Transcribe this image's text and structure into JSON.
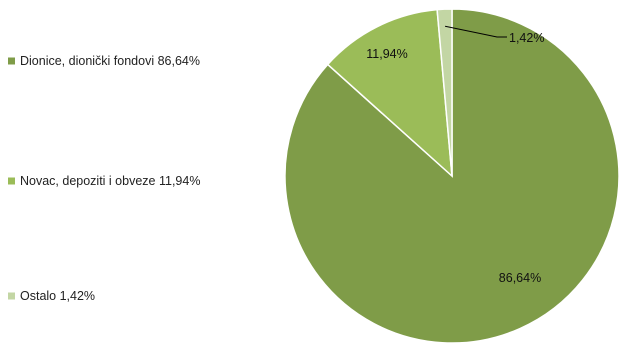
{
  "chart_data": {
    "type": "pie",
    "title": "",
    "categories": [
      "Dionice, dionički fondovi",
      "Novac, depoziti i obveze",
      "Ostalo"
    ],
    "values": [
      86.64,
      11.94,
      1.42
    ],
    "unit": "%",
    "legend_labels": [
      "Dionice, dionički fondovi 86,64%",
      "Novac, depoziti i obveze 11,94%",
      "Ostalo 1,42%"
    ],
    "data_labels": [
      "86,64%",
      "11,94%",
      "1,42%"
    ],
    "colors": [
      "#7f9c48",
      "#9bbc58",
      "#c3d6a4"
    ],
    "legend_position": "left",
    "start_angle": "top, clockwise"
  }
}
